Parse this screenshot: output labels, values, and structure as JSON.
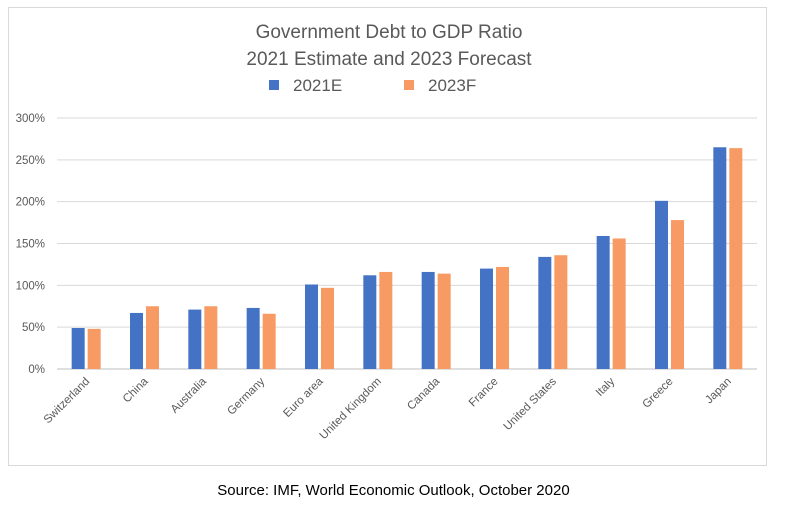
{
  "chart_data": {
    "type": "bar",
    "title_lines": [
      "Government Debt to GDP Ratio",
      "2021 Estimate and 2023 Forecast"
    ],
    "categories": [
      "Switzerland",
      "China",
      "Australia",
      "Germany",
      "Euro area",
      "United Kingdom",
      "Canada",
      "France",
      "United States",
      "Italy",
      "Greece",
      "Japan"
    ],
    "series": [
      {
        "name": "2021E",
        "color": "#4472C4",
        "values": [
          49,
          67,
          71,
          73,
          101,
          112,
          116,
          120,
          134,
          159,
          201,
          265
        ]
      },
      {
        "name": "2023F",
        "color": "#F79A63",
        "values": [
          48,
          75,
          75,
          66,
          97,
          116,
          114,
          122,
          136,
          156,
          178,
          264
        ]
      }
    ],
    "ylim": [
      0,
      300
    ],
    "yticks": [
      0,
      50,
      100,
      150,
      200,
      250,
      300
    ],
    "ytick_labels": [
      "0%",
      "50%",
      "100%",
      "150%",
      "200%",
      "250%",
      "300%"
    ],
    "grid": true,
    "legend_position": "top-center",
    "xlabel": "",
    "ylabel": ""
  },
  "caption": "Source: IMF, World Economic Outlook, October 2020"
}
